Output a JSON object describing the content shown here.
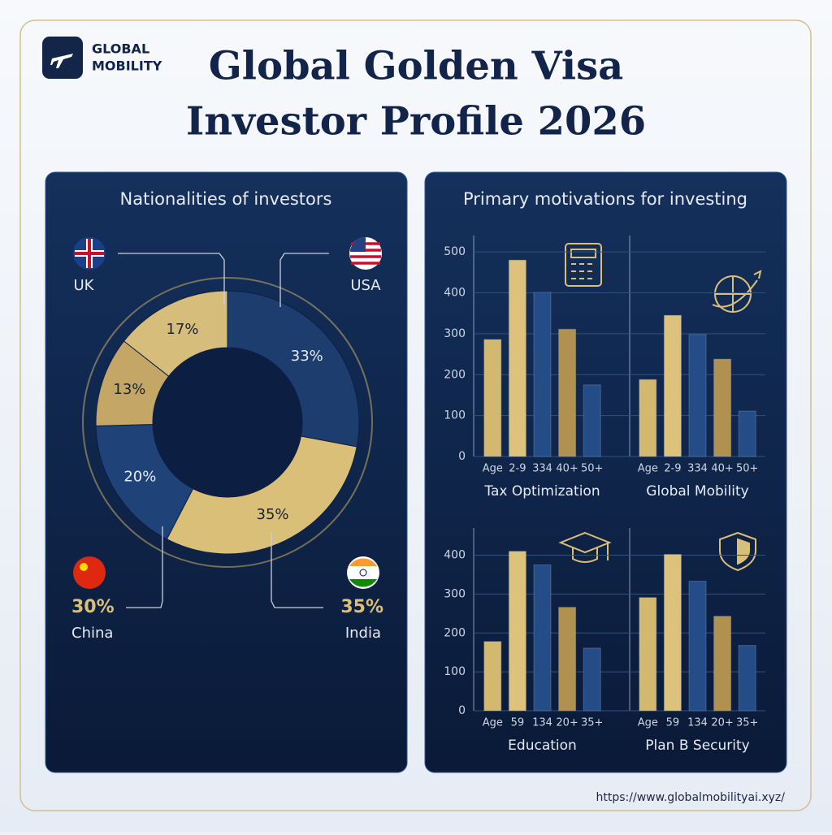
{
  "header": {
    "logo": [
      "GLOBAL",
      "MOBILITY"
    ],
    "title": [
      "Global Golden Visa",
      "Investor Profile 2026"
    ]
  },
  "motivations_title": "Primary motivations for investing",
  "chart_data": [
    {
      "type": "donut",
      "title": "Nationalities of investors",
      "values": [
        33,
        35,
        20,
        13,
        17
      ],
      "value_labels": [
        "33%",
        "35%",
        "20%",
        "13%",
        "17%"
      ],
      "colors": [
        "#1d3d6e",
        "#d9bf78",
        "#1f4379",
        "#c4a767",
        "#d6bd7c"
      ],
      "callouts": [
        {
          "label": "UK"
        },
        {
          "label": "USA"
        },
        {
          "label": "China",
          "share": "30%"
        },
        {
          "label": "India",
          "share": "35%"
        }
      ]
    },
    {
      "type": "bar",
      "title": "Tax Optimization",
      "categories": [
        "Age",
        "2-9",
        "334",
        "40+",
        "50+"
      ],
      "values": [
        286,
        480,
        401,
        311,
        175
      ],
      "colors": [
        "#d3b86f",
        "#dcc27a",
        "#244c86",
        "#b0914f",
        "#244c86"
      ],
      "ylim": [
        0,
        540
      ],
      "yticks": [
        0,
        100,
        200,
        300,
        400,
        500
      ],
      "grid": true,
      "tick_labels": true
    },
    {
      "type": "bar",
      "title": "Global Mobility",
      "categories": [
        "Age",
        "2-9",
        "334",
        "40+",
        "50+"
      ],
      "values": [
        188,
        345,
        298,
        238,
        111
      ],
      "colors": [
        "#d3b86f",
        "#dcc27a",
        "#244c86",
        "#b0914f",
        "#244c86"
      ],
      "ylim": [
        0,
        540
      ],
      "yticks": [
        0,
        100,
        200,
        300,
        400,
        500
      ],
      "grid": true,
      "tick_labels": false
    },
    {
      "type": "bar",
      "title": "Education",
      "categories": [
        "Age",
        "59",
        "134",
        "20+",
        "35+"
      ],
      "values": [
        178,
        410,
        375,
        266,
        161
      ],
      "colors": [
        "#d3b86f",
        "#dcc27a",
        "#244c86",
        "#b0914f",
        "#244c86"
      ],
      "ylim": [
        0,
        470
      ],
      "yticks": [
        0,
        100,
        200,
        300,
        400
      ],
      "grid": true,
      "tick_labels": true
    },
    {
      "type": "bar",
      "title": "Plan B Security",
      "categories": [
        "Age",
        "59",
        "134",
        "20+",
        "35+"
      ],
      "values": [
        291,
        402,
        333,
        243,
        168
      ],
      "colors": [
        "#d3b86f",
        "#dcc27a",
        "#244c86",
        "#b0914f",
        "#244c86"
      ],
      "ylim": [
        0,
        470
      ],
      "yticks": [
        0,
        100,
        200,
        300,
        400
      ],
      "grid": true,
      "tick_labels": false
    }
  ],
  "footer": {
    "url": "https://www.globalmobilityai.xyz/"
  }
}
